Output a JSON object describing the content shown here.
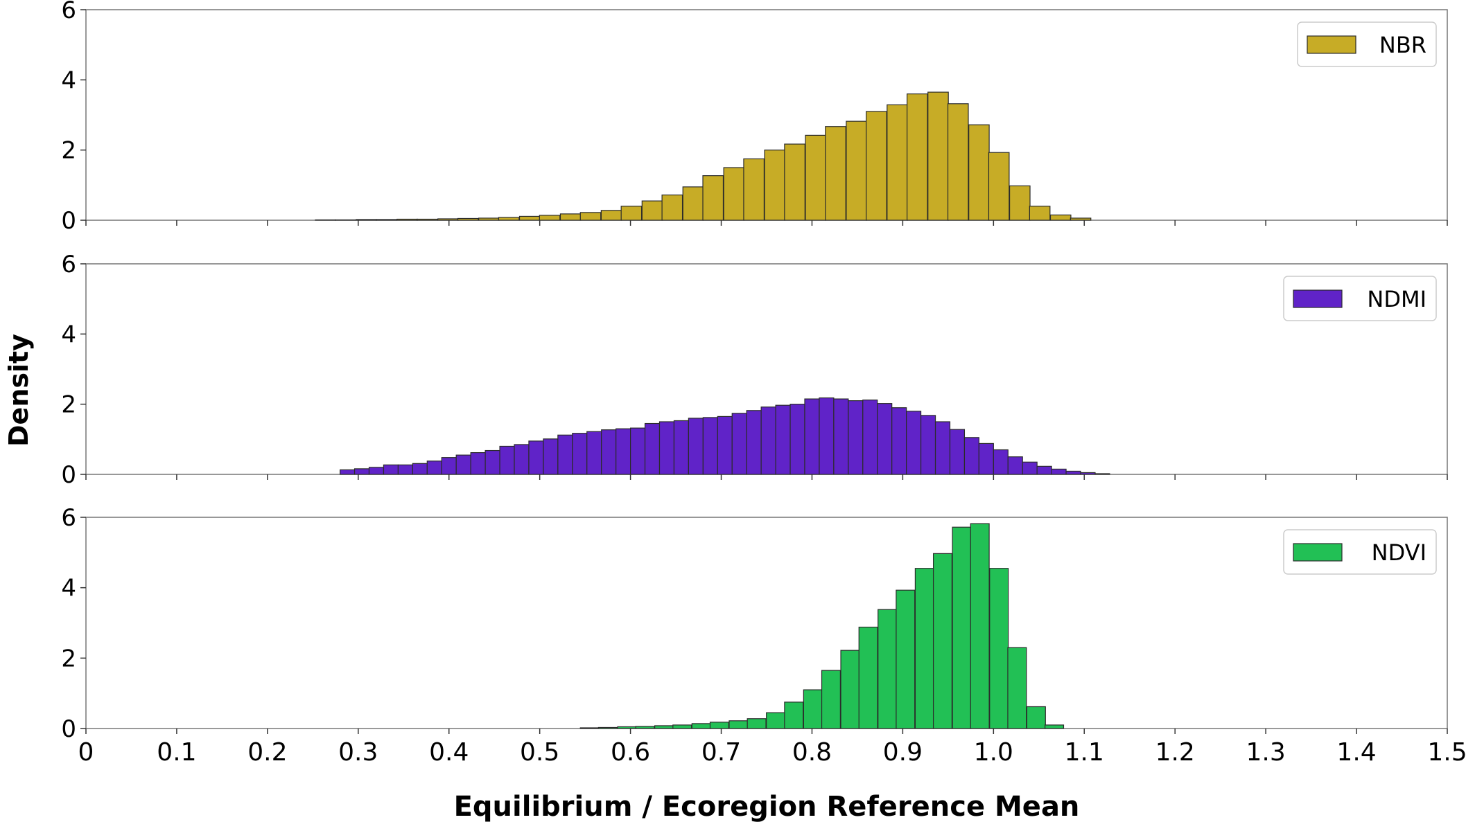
{
  "chart_data": {
    "type": "bar",
    "figure_type": "histogram",
    "ylabel": "Density",
    "xlabel": "Equilibrium / Ecoregion Reference Mean",
    "xlim": [
      0,
      1.5
    ],
    "x_ticks": [
      "0",
      "0.1",
      "0.2",
      "0.3",
      "0.4",
      "0.5",
      "0.6",
      "0.7",
      "0.8",
      "0.9",
      "1.0",
      "1.1",
      "1.2",
      "1.3",
      "1.4",
      "1.5"
    ],
    "grid": false,
    "legend_position": "top-right",
    "panels": [
      {
        "name": "NBR",
        "color": "#C7AC26",
        "ylim": [
          0,
          6
        ],
        "y_ticks": [
          "0",
          "2",
          "4",
          "6"
        ],
        "bin_width": 0.0225,
        "x": [
          0.264,
          0.286,
          0.309,
          0.331,
          0.354,
          0.376,
          0.399,
          0.421,
          0.444,
          0.466,
          0.489,
          0.511,
          0.534,
          0.556,
          0.579,
          0.601,
          0.624,
          0.646,
          0.669,
          0.691,
          0.714,
          0.736,
          0.759,
          0.781,
          0.804,
          0.826,
          0.849,
          0.871,
          0.894,
          0.916,
          0.939,
          0.961,
          0.984,
          1.006,
          1.029,
          1.051,
          1.074,
          1.096
        ],
        "values": [
          0.01,
          0.01,
          0.02,
          0.02,
          0.03,
          0.03,
          0.04,
          0.05,
          0.06,
          0.08,
          0.11,
          0.14,
          0.18,
          0.22,
          0.28,
          0.4,
          0.55,
          0.72,
          0.95,
          1.27,
          1.5,
          1.75,
          2.0,
          2.17,
          2.42,
          2.67,
          2.82,
          3.1,
          3.29,
          3.6,
          3.65,
          3.32,
          2.72,
          1.93,
          0.98,
          0.4,
          0.15,
          0.06
        ]
      },
      {
        "name": "NDMI",
        "color": "#6023C8",
        "ylim": [
          0,
          6
        ],
        "y_ticks": [
          "0",
          "2",
          "4",
          "6"
        ],
        "bin_width": 0.016,
        "x": [
          0.288,
          0.304,
          0.32,
          0.336,
          0.352,
          0.368,
          0.384,
          0.4,
          0.416,
          0.432,
          0.448,
          0.464,
          0.48,
          0.496,
          0.512,
          0.528,
          0.544,
          0.56,
          0.576,
          0.592,
          0.608,
          0.624,
          0.64,
          0.656,
          0.672,
          0.688,
          0.704,
          0.72,
          0.736,
          0.752,
          0.768,
          0.784,
          0.8,
          0.816,
          0.832,
          0.848,
          0.864,
          0.88,
          0.896,
          0.912,
          0.928,
          0.944,
          0.96,
          0.976,
          0.992,
          1.008,
          1.024,
          1.04,
          1.056,
          1.072,
          1.088,
          1.104,
          1.12
        ],
        "values": [
          0.13,
          0.16,
          0.2,
          0.27,
          0.27,
          0.31,
          0.38,
          0.48,
          0.55,
          0.62,
          0.68,
          0.8,
          0.85,
          0.95,
          1.01,
          1.12,
          1.17,
          1.22,
          1.27,
          1.3,
          1.32,
          1.45,
          1.5,
          1.53,
          1.6,
          1.62,
          1.65,
          1.74,
          1.82,
          1.92,
          1.97,
          2.0,
          2.15,
          2.18,
          2.15,
          2.1,
          2.12,
          2.02,
          1.9,
          1.8,
          1.68,
          1.5,
          1.28,
          1.05,
          0.88,
          0.7,
          0.5,
          0.35,
          0.23,
          0.15,
          0.09,
          0.05,
          0.02
        ]
      },
      {
        "name": "NDVI",
        "color": "#22C055",
        "ylim": [
          0,
          6
        ],
        "y_ticks": [
          "0",
          "2",
          "4",
          "6"
        ],
        "bin_width": 0.0205,
        "x": [
          0.555,
          0.575,
          0.596,
          0.616,
          0.637,
          0.657,
          0.678,
          0.698,
          0.719,
          0.739,
          0.76,
          0.78,
          0.801,
          0.821,
          0.842,
          0.862,
          0.883,
          0.903,
          0.924,
          0.944,
          0.965,
          0.985,
          1.006,
          1.026,
          1.047,
          1.067
        ],
        "values": [
          0.02,
          0.03,
          0.05,
          0.06,
          0.08,
          0.1,
          0.14,
          0.18,
          0.22,
          0.28,
          0.45,
          0.75,
          1.1,
          1.65,
          2.22,
          2.88,
          3.38,
          3.93,
          4.55,
          4.97,
          5.72,
          5.82,
          4.55,
          2.3,
          0.62,
          0.1
        ]
      }
    ]
  }
}
